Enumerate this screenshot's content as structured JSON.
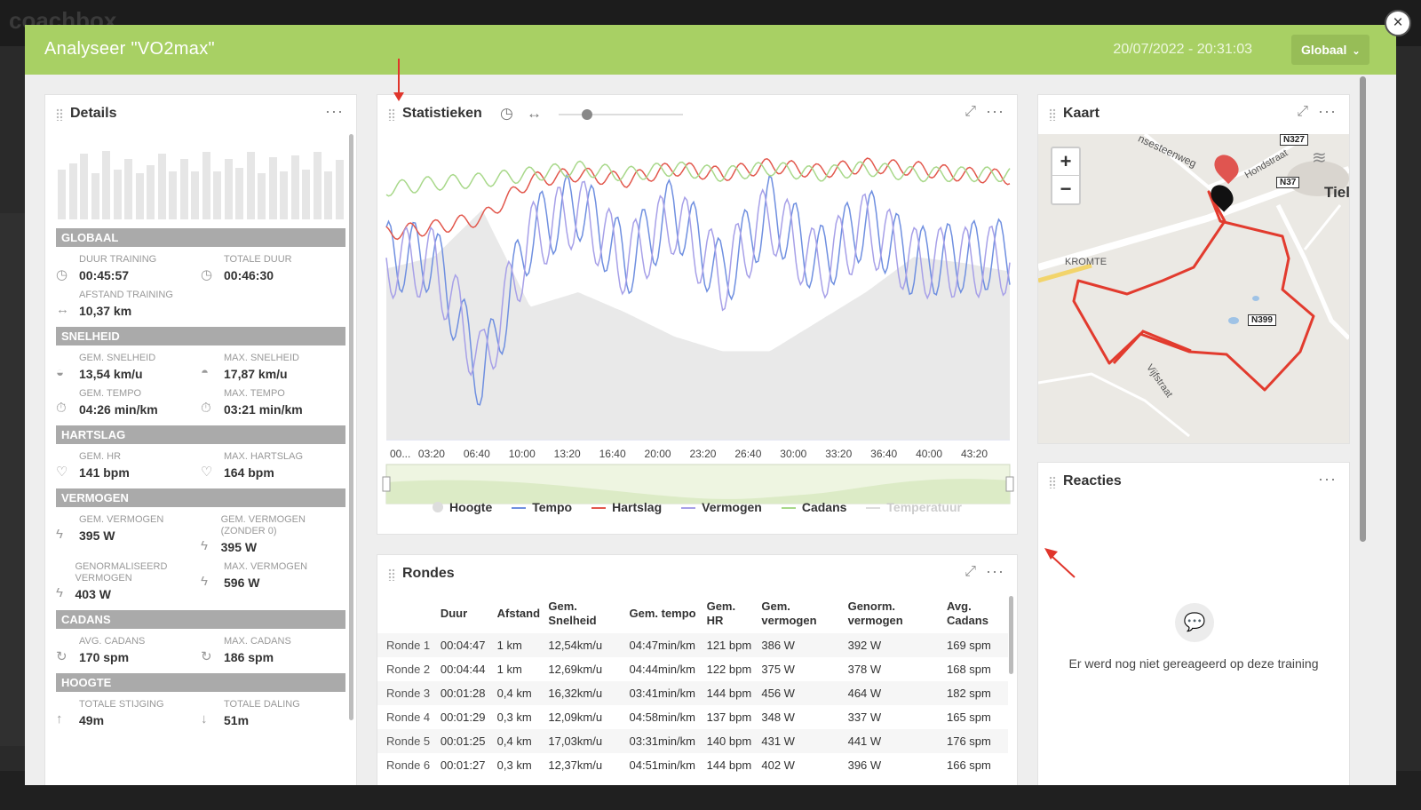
{
  "modal": {
    "title": "Analyseer \"VO2max\"",
    "date": "20/07/2022 - 20:31:03",
    "scope_button": "Globaal",
    "close_label": "×"
  },
  "details": {
    "title": "Details",
    "menu": "···",
    "sections": {
      "globaal": "GLOBAAL",
      "snelheid": "SNELHEID",
      "hartslag": "HARTSLAG",
      "vermogen": "VERMOGEN",
      "cadans": "CADANS",
      "hoogte": "HOOGTE"
    },
    "stats": {
      "duur_training": {
        "label": "DUUR TRAINING",
        "value": "00:45:57"
      },
      "totale_duur": {
        "label": "TOTALE DUUR",
        "value": "00:46:30"
      },
      "afstand_training": {
        "label": "AFSTAND TRAINING",
        "value": "10,37 km"
      },
      "gem_snelheid": {
        "label": "GEM. SNELHEID",
        "value": "13,54 km/u"
      },
      "max_snelheid": {
        "label": "MAX. SNELHEID",
        "value": "17,87 km/u"
      },
      "gem_tempo": {
        "label": "GEM. TEMPO",
        "value": "04:26 min/km"
      },
      "max_tempo": {
        "label": "MAX. TEMPO",
        "value": "03:21 min/km"
      },
      "gem_hr": {
        "label": "GEM. HR",
        "value": "141 bpm"
      },
      "max_hartslag": {
        "label": "MAX. HARTSLAG",
        "value": "164 bpm"
      },
      "gem_vermogen": {
        "label": "GEM. VERMOGEN",
        "value": "395 W"
      },
      "gem_vermogen_zonder0": {
        "label": "GEM. VERMOGEN (ZONDER 0)",
        "value": "395 W"
      },
      "genormaliseerd_vermogen": {
        "label": "GENORMALISEERD VERMOGEN",
        "value": "403 W"
      },
      "max_vermogen": {
        "label": "MAX. VERMOGEN",
        "value": "596 W"
      },
      "avg_cadans": {
        "label": "AVG. CADANS",
        "value": "170 spm"
      },
      "max_cadans": {
        "label": "MAX. CADANS",
        "value": "186 spm"
      },
      "totale_stijging": {
        "label": "TOTALE STIJGING",
        "value": "49m"
      },
      "totale_daling": {
        "label": "TOTALE DALING",
        "value": "51m"
      }
    },
    "mini_chart_levels": [
      0.62,
      0.7,
      0.82,
      0.58,
      0.86,
      0.62,
      0.76,
      0.58,
      0.68,
      0.82,
      0.6,
      0.76,
      0.6,
      0.84,
      0.6,
      0.76,
      0.64,
      0.84,
      0.58,
      0.78,
      0.6,
      0.8,
      0.62,
      0.84,
      0.6,
      0.74
    ]
  },
  "stats": {
    "title": "Statistieken",
    "menu": "···",
    "x_ticks": [
      "00...",
      "03:20",
      "06:40",
      "10:00",
      "13:20",
      "16:40",
      "20:00",
      "23:20",
      "26:40",
      "30:00",
      "33:20",
      "36:40",
      "40:00",
      "43:20"
    ],
    "legend": [
      {
        "name": "Hoogte",
        "color": "#dcdcdc",
        "muted": false
      },
      {
        "name": "Tempo",
        "color": "#6f8fe0",
        "muted": false
      },
      {
        "name": "Hartslag",
        "color": "#e2574c",
        "muted": false
      },
      {
        "name": "Vermogen",
        "color": "#a7a0e8",
        "muted": false
      },
      {
        "name": "Cadans",
        "color": "#a8d88a",
        "muted": false
      },
      {
        "name": "Temperatuur",
        "color": "#dddddd",
        "muted": true
      }
    ]
  },
  "chart_data": {
    "type": "line",
    "x_ticks": [
      "00...",
      "03:20",
      "06:40",
      "10:00",
      "13:20",
      "16:40",
      "20:00",
      "23:20",
      "26:40",
      "30:00",
      "33:20",
      "36:40",
      "40:00",
      "43:20"
    ],
    "x_seconds": [
      0,
      200,
      400,
      600,
      800,
      1000,
      1200,
      1400,
      1600,
      1800,
      2000,
      2200,
      2400,
      2600
    ],
    "series_note": "relative levels 0..1 of plot height, sampled every 200 s",
    "series": [
      {
        "name": "Hoogte",
        "values": [
          0.58,
          0.62,
          0.78,
          0.45,
          0.5,
          0.43,
          0.35,
          0.3,
          0.3,
          0.4,
          0.5,
          0.62,
          0.6,
          0.57
        ]
      },
      {
        "name": "Tempo",
        "values": [
          0.62,
          0.62,
          0.2,
          0.7,
          0.8,
          0.6,
          0.78,
          0.55,
          0.78,
          0.6,
          0.74,
          0.6,
          0.62,
          0.63
        ]
      },
      {
        "name": "Hartslag",
        "values": [
          0.7,
          0.72,
          0.75,
          0.88,
          0.9,
          0.88,
          0.92,
          0.9,
          0.93,
          0.91,
          0.93,
          0.92,
          0.9,
          0.89
        ]
      },
      {
        "name": "Vermogen",
        "values": [
          0.6,
          0.6,
          0.25,
          0.68,
          0.78,
          0.6,
          0.75,
          0.55,
          0.76,
          0.58,
          0.72,
          0.6,
          0.6,
          0.61
        ]
      },
      {
        "name": "Cadans",
        "values": [
          0.85,
          0.87,
          0.88,
          0.9,
          0.92,
          0.9,
          0.92,
          0.9,
          0.92,
          0.9,
          0.92,
          0.9,
          0.9,
          0.9
        ]
      }
    ]
  },
  "rondes": {
    "title": "Rondes",
    "menu": "···",
    "columns": [
      "",
      "Duur",
      "Afstand",
      "Gem. Snelheid",
      "Gem. tempo",
      "Gem. HR",
      "Gem. vermogen",
      "Genorm. vermogen",
      "Avg. Cadans"
    ],
    "rows": [
      [
        "Ronde 1",
        "00:04:47",
        "1 km",
        "12,54km/u",
        "04:47min/km",
        "121 bpm",
        "386 W",
        "392 W",
        "169 spm"
      ],
      [
        "Ronde 2",
        "00:04:44",
        "1 km",
        "12,69km/u",
        "04:44min/km",
        "122 bpm",
        "375 W",
        "378 W",
        "168 spm"
      ],
      [
        "Ronde 3",
        "00:01:28",
        "0,4 km",
        "16,32km/u",
        "03:41min/km",
        "144 bpm",
        "456 W",
        "464 W",
        "182 spm"
      ],
      [
        "Ronde 4",
        "00:01:29",
        "0,3 km",
        "12,09km/u",
        "04:58min/km",
        "137 bpm",
        "348 W",
        "337 W",
        "165 spm"
      ],
      [
        "Ronde 5",
        "00:01:25",
        "0,4 km",
        "17,03km/u",
        "03:31min/km",
        "140 bpm",
        "431 W",
        "441 W",
        "176 spm"
      ],
      [
        "Ronde 6",
        "00:01:27",
        "0,3 km",
        "12,37km/u",
        "04:51min/km",
        "144 bpm",
        "402 W",
        "396 W",
        "166 spm"
      ]
    ]
  },
  "kaart": {
    "title": "Kaart",
    "menu": "···",
    "zoom_in": "+",
    "zoom_out": "−",
    "labels": {
      "tiel": "Tiel",
      "kromte": "KROMTE",
      "steenweg": "nsesteenweg",
      "straat": "Hondstraat",
      "vijfstraat": "Vijfstraat"
    },
    "roads": [
      "N327",
      "N37",
      "N399"
    ]
  },
  "reacties": {
    "title": "Reacties",
    "menu": "···",
    "empty_text": "Er werd nog niet gereageerd op deze training"
  }
}
